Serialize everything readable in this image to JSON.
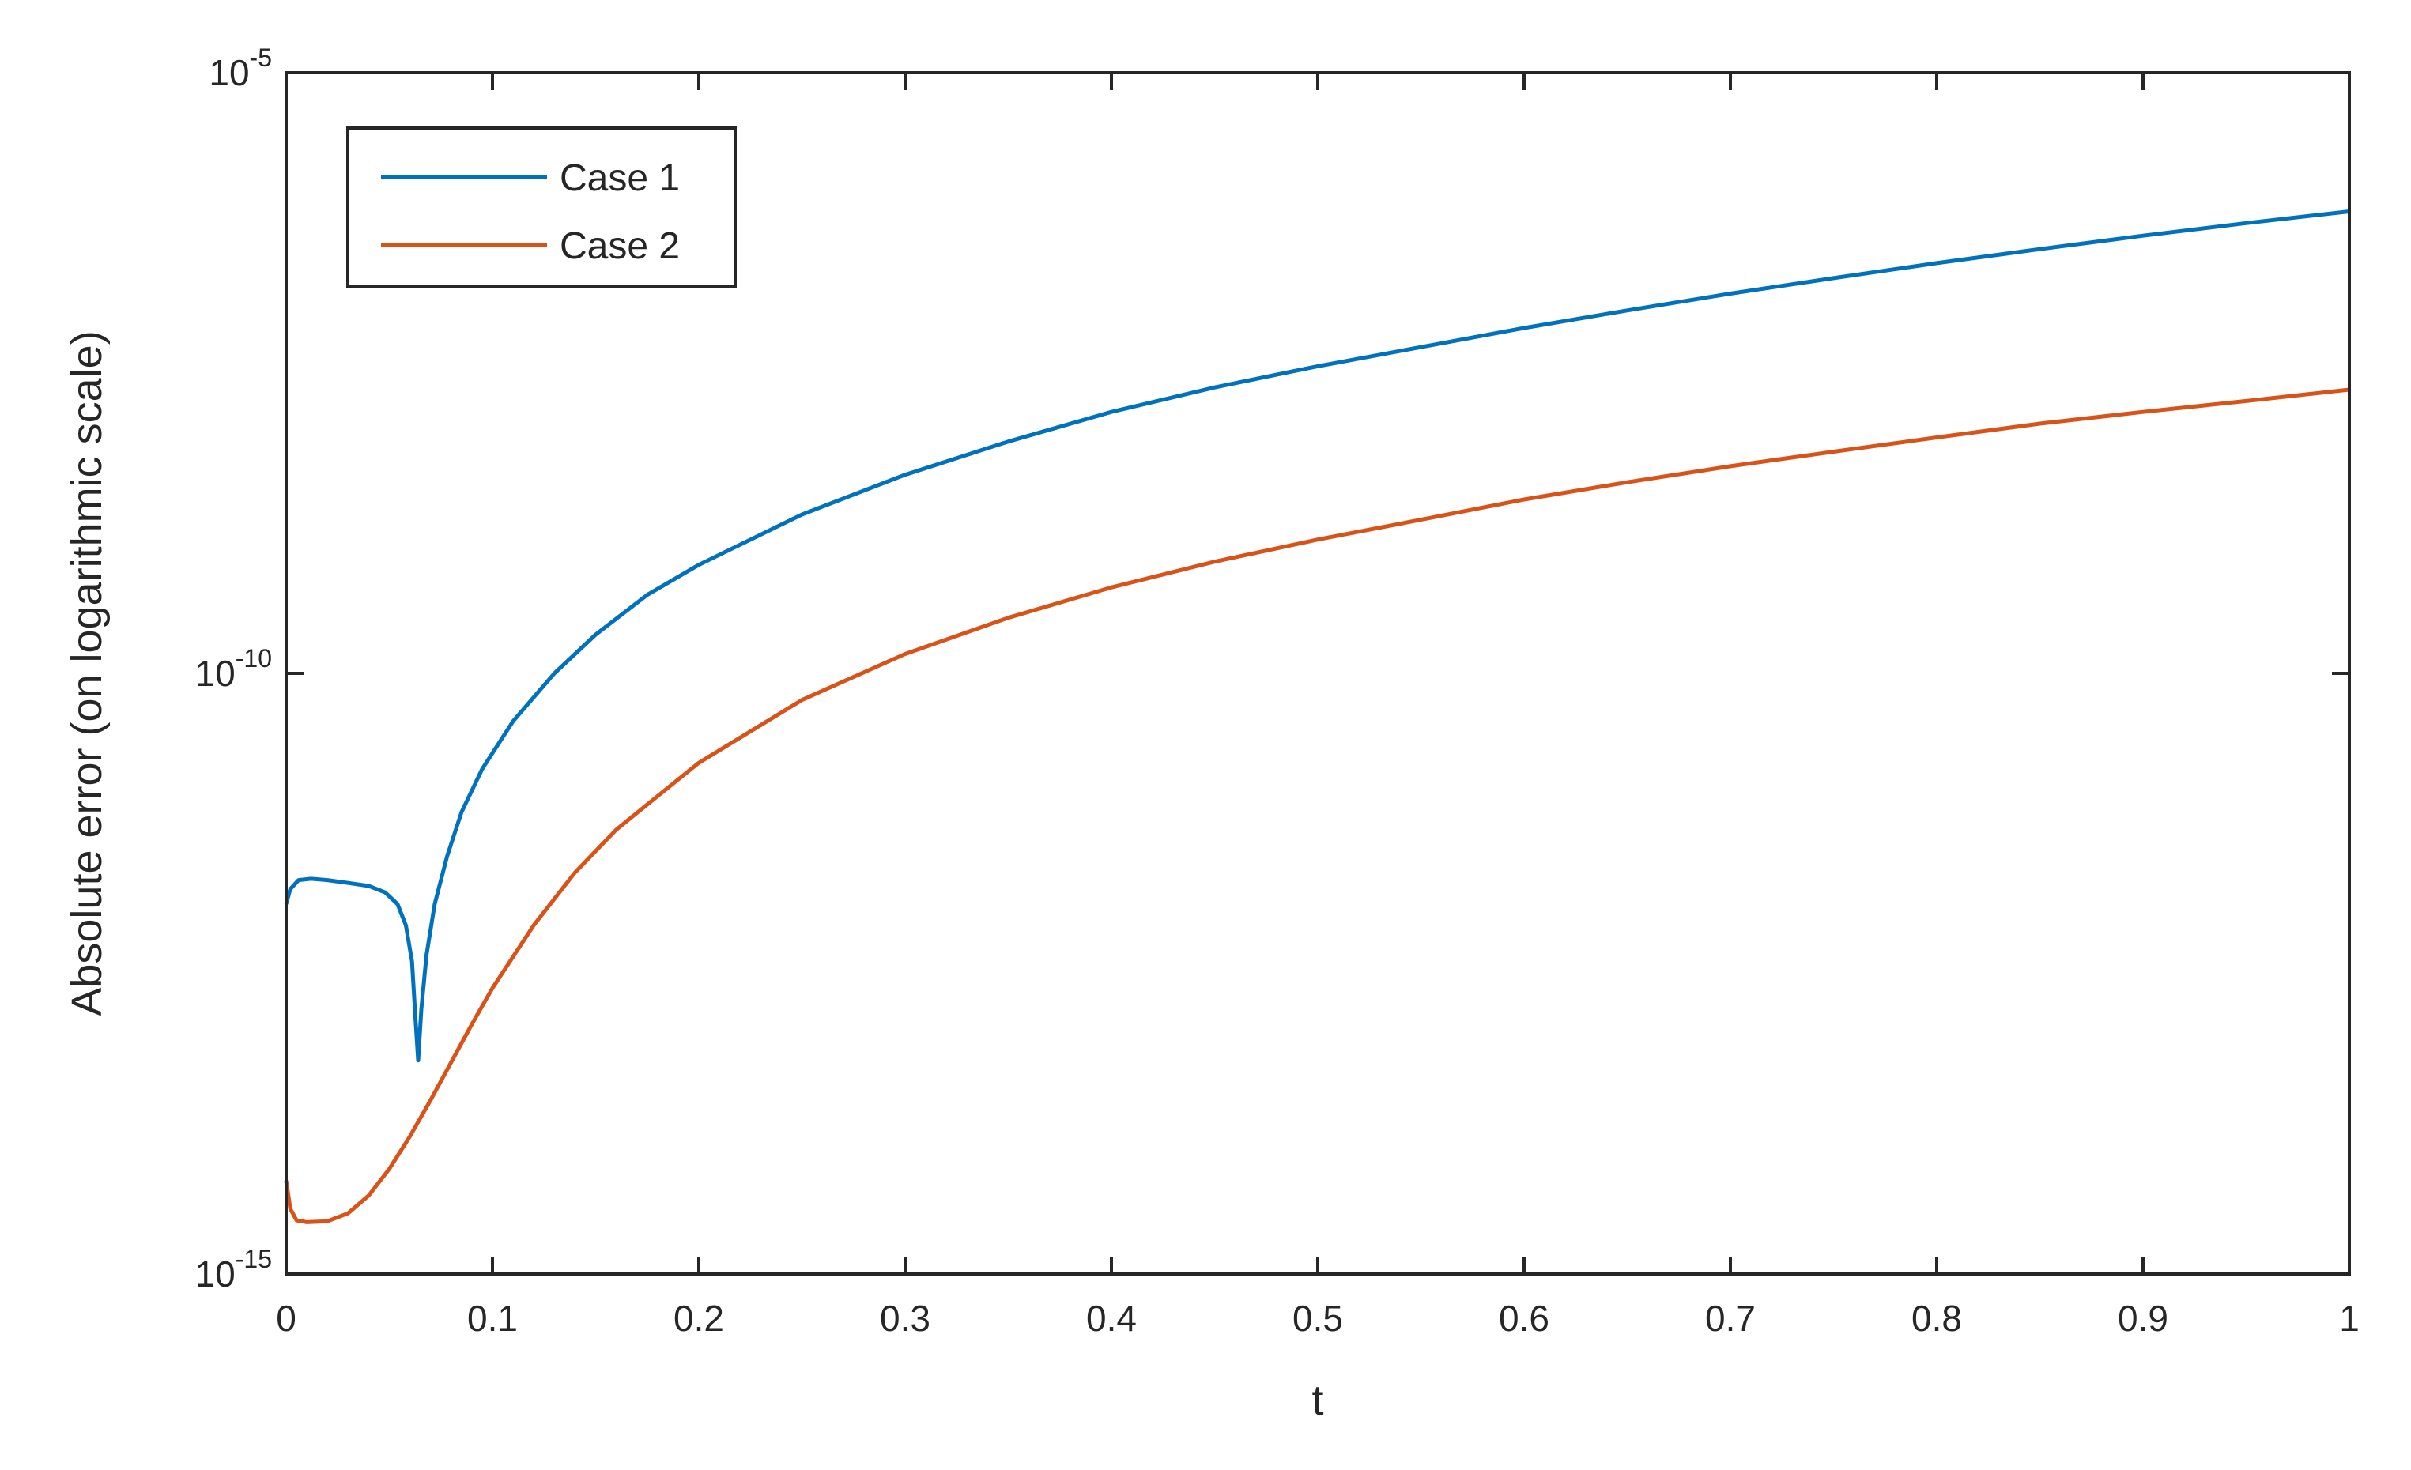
{
  "chart_data": {
    "type": "line",
    "title": "",
    "xlabel": "t",
    "ylabel": "Absolute error (on logarithmic scale)",
    "xlim": [
      0,
      1
    ],
    "ylim": [
      1e-15,
      1e-05
    ],
    "yscale": "log",
    "grid": false,
    "legend_position": "top-left",
    "x_ticks": [
      0,
      0.1,
      0.2,
      0.3,
      0.4,
      0.5,
      0.6,
      0.7,
      0.8,
      0.9,
      1
    ],
    "x_tick_labels": [
      "0",
      "0.1",
      "0.2",
      "0.3",
      "0.4",
      "0.5",
      "0.6",
      "0.7",
      "0.8",
      "0.9",
      "1"
    ],
    "y_ticks": [
      {
        "value": 1e-05,
        "base": "10",
        "exponent": "-5"
      },
      {
        "value": 1e-10,
        "base": "10",
        "exponent": "-10"
      },
      {
        "value": 1e-15,
        "base": "10",
        "exponent": "-15"
      }
    ],
    "series": [
      {
        "name": "Case 1",
        "color": "#0072BD",
        "points": [
          [
            0.0,
            1.2e-12
          ],
          [
            0.002,
            1.6e-12
          ],
          [
            0.006,
            1.9e-12
          ],
          [
            0.012,
            1.95e-12
          ],
          [
            0.02,
            1.9e-12
          ],
          [
            0.03,
            1.8e-12
          ],
          [
            0.04,
            1.7e-12
          ],
          [
            0.048,
            1.5e-12
          ],
          [
            0.054,
            1.2e-12
          ],
          [
            0.058,
            8e-13
          ],
          [
            0.061,
            4e-13
          ],
          [
            0.0625,
            1.5e-13
          ],
          [
            0.064,
            6e-14
          ],
          [
            0.0655,
            1.6e-13
          ],
          [
            0.068,
            4.5e-13
          ],
          [
            0.072,
            1.2e-12
          ],
          [
            0.078,
            3e-12
          ],
          [
            0.085,
            7e-12
          ],
          [
            0.095,
            1.6e-11
          ],
          [
            0.11,
            4e-11
          ],
          [
            0.13,
            1e-10
          ],
          [
            0.15,
            2.1e-10
          ],
          [
            0.175,
            4.5e-10
          ],
          [
            0.2,
            8e-10
          ],
          [
            0.25,
            2.1e-09
          ],
          [
            0.3,
            4.5e-09
          ],
          [
            0.35,
            8.5e-09
          ],
          [
            0.4,
            1.5e-08
          ],
          [
            0.45,
            2.4e-08
          ],
          [
            0.5,
            3.6e-08
          ],
          [
            0.55,
            5.2e-08
          ],
          [
            0.6,
            7.5e-08
          ],
          [
            0.65,
            1.05e-07
          ],
          [
            0.7,
            1.45e-07
          ],
          [
            0.75,
            1.95e-07
          ],
          [
            0.8,
            2.6e-07
          ],
          [
            0.85,
            3.4e-07
          ],
          [
            0.9,
            4.4e-07
          ],
          [
            0.95,
            5.6e-07
          ],
          [
            1.0,
            7e-07
          ]
        ]
      },
      {
        "name": "Case 2",
        "color": "#D95319",
        "points": [
          [
            0.0,
            6e-15
          ],
          [
            0.002,
            3.5e-15
          ],
          [
            0.005,
            2.8e-15
          ],
          [
            0.01,
            2.7e-15
          ],
          [
            0.02,
            2.75e-15
          ],
          [
            0.03,
            3.2e-15
          ],
          [
            0.04,
            4.5e-15
          ],
          [
            0.05,
            7.5e-15
          ],
          [
            0.06,
            1.4e-14
          ],
          [
            0.07,
            2.8e-14
          ],
          [
            0.08,
            5.8e-14
          ],
          [
            0.09,
            1.2e-13
          ],
          [
            0.1,
            2.4e-13
          ],
          [
            0.12,
            8e-13
          ],
          [
            0.14,
            2.2e-12
          ],
          [
            0.16,
            5e-12
          ],
          [
            0.18,
            9.5e-12
          ],
          [
            0.2,
            1.8e-11
          ],
          [
            0.25,
            6e-11
          ],
          [
            0.3,
            1.45e-10
          ],
          [
            0.35,
            2.9e-10
          ],
          [
            0.4,
            5.2e-10
          ],
          [
            0.45,
            8.5e-10
          ],
          [
            0.5,
            1.3e-09
          ],
          [
            0.55,
            1.9e-09
          ],
          [
            0.6,
            2.8e-09
          ],
          [
            0.65,
            3.9e-09
          ],
          [
            0.7,
            5.3e-09
          ],
          [
            0.75,
            7e-09
          ],
          [
            0.8,
            9.2e-09
          ],
          [
            0.85,
            1.2e-08
          ],
          [
            0.9,
            1.5e-08
          ],
          [
            0.95,
            1.85e-08
          ],
          [
            1.0,
            2.3e-08
          ]
        ]
      }
    ]
  }
}
